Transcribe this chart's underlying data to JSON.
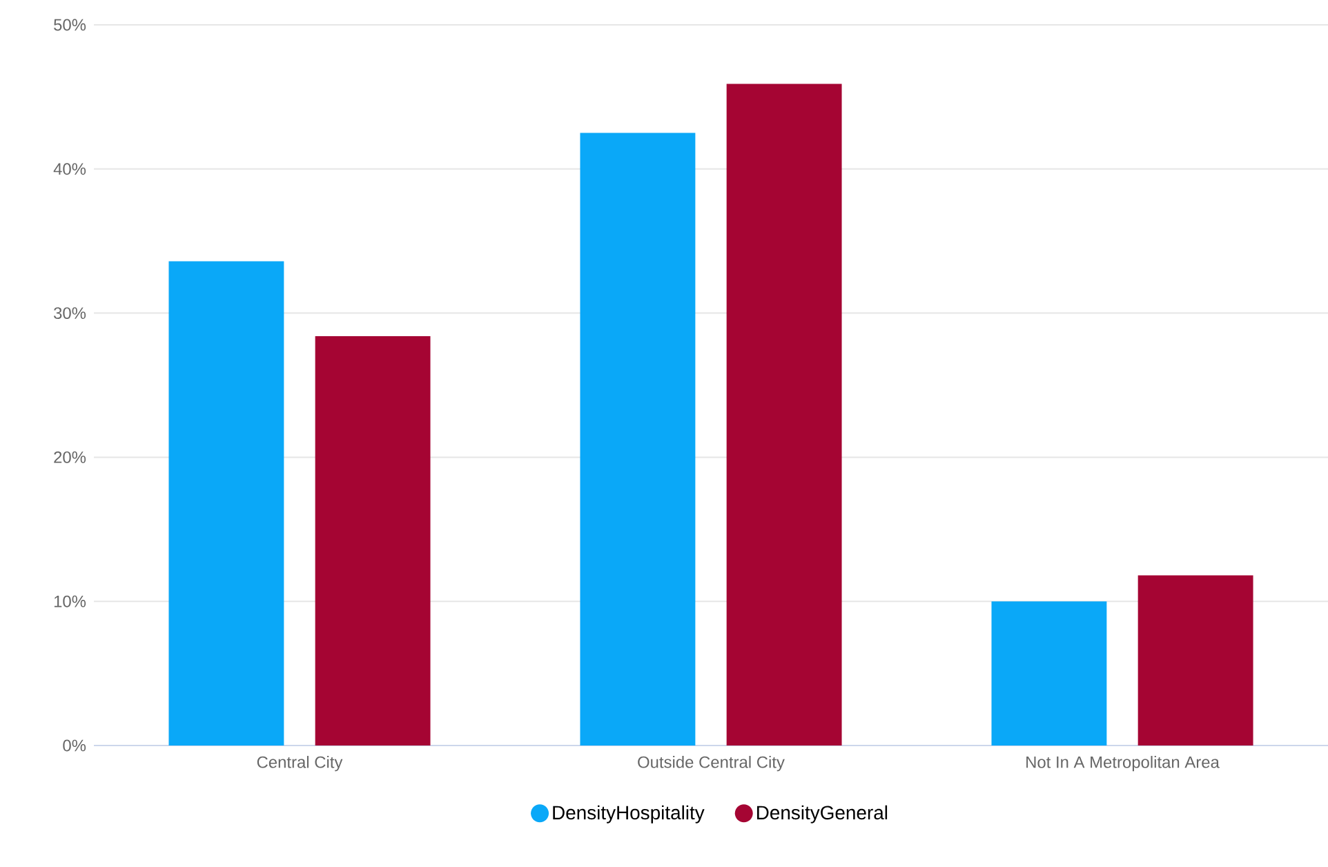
{
  "chart_data": {
    "type": "bar",
    "categories": [
      "Central City",
      "Outside Central City",
      "Not In A Metropolitan Area"
    ],
    "series": [
      {
        "name": "DensityHospitality",
        "color": "#0aa8f8",
        "values": [
          33.6,
          42.5,
          10.0
        ]
      },
      {
        "name": "DensityGeneral",
        "color": "#a50533",
        "values": [
          28.4,
          45.9,
          11.8
        ]
      }
    ],
    "ylim": [
      0,
      50
    ],
    "yticks": [
      {
        "value": 0,
        "label": "0%"
      },
      {
        "value": 10,
        "label": "10%"
      },
      {
        "value": 20,
        "label": "20%"
      },
      {
        "value": 30,
        "label": "30%"
      },
      {
        "value": 40,
        "label": "40%"
      },
      {
        "value": 50,
        "label": "50%"
      }
    ],
    "grid": "y",
    "legend": "bottom"
  }
}
